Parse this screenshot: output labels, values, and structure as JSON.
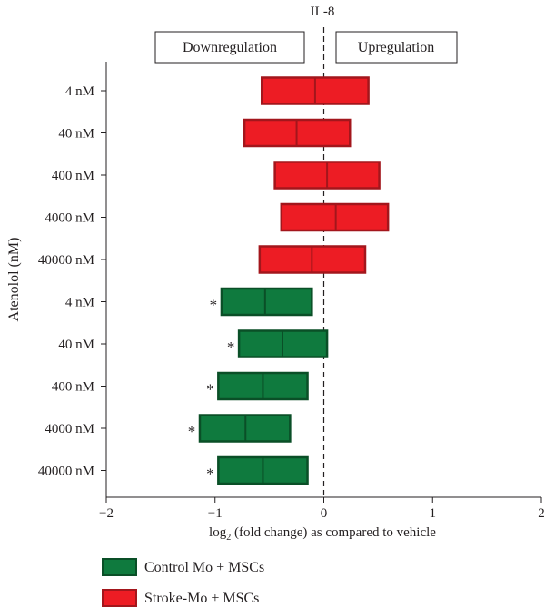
{
  "chart_data": {
    "type": "bar",
    "subtype": "floating-range",
    "title": "IL-8",
    "ylabel": "Atenolol (nM)",
    "xlabel_prefix": "log",
    "xlabel_subscript": "2",
    "xlabel_suffix": " (fold change) as compared to vehicle",
    "xlim": [
      -2,
      2
    ],
    "xticks": [
      -2,
      -1,
      0,
      1,
      2
    ],
    "xtick_labels": [
      "−2",
      "−1",
      "0",
      "1",
      "2"
    ],
    "region_labels": {
      "left": "Downregulation",
      "right": "Upregulation"
    },
    "categories": [
      "4 nM",
      "40 nM",
      "400 nM",
      "4000 nM",
      "40000 nM",
      "4 nM",
      "40 nM",
      "400 nM",
      "4000 nM",
      "40000 nM"
    ],
    "series": [
      {
        "name": "Stroke-Mo + MSCs",
        "color": "#ed1c24",
        "border": "#a3161c",
        "rows": [
          0,
          1,
          2,
          3,
          4
        ],
        "low": [
          -0.57,
          -0.73,
          -0.45,
          -0.39,
          -0.59
        ],
        "mid": [
          -0.08,
          -0.25,
          0.03,
          0.11,
          -0.11
        ],
        "high": [
          0.41,
          0.24,
          0.51,
          0.59,
          0.38
        ],
        "marks": [
          "",
          "",
          "",
          "",
          ""
        ]
      },
      {
        "name": "Control Mo + MSCs",
        "color": "#0f7a3e",
        "border": "#0a4f27",
        "rows": [
          5,
          6,
          7,
          8,
          9
        ],
        "low": [
          -0.94,
          -0.78,
          -0.97,
          -1.14,
          -0.97
        ],
        "mid": [
          -0.54,
          -0.38,
          -0.56,
          -0.72,
          -0.56
        ],
        "high": [
          -0.11,
          0.03,
          -0.15,
          -0.31,
          -0.15
        ],
        "marks": [
          "*",
          "*",
          "*",
          "*",
          "*"
        ]
      }
    ],
    "legend": [
      {
        "label": "Control Mo + MSCs",
        "color": "#0f7a3e",
        "border": "#0a4f27"
      },
      {
        "label": "Stroke-Mo + MSCs",
        "color": "#ed1c24",
        "border": "#a3161c"
      }
    ],
    "legend_position": "bottom-left",
    "grid": false,
    "reference_line": 0
  }
}
